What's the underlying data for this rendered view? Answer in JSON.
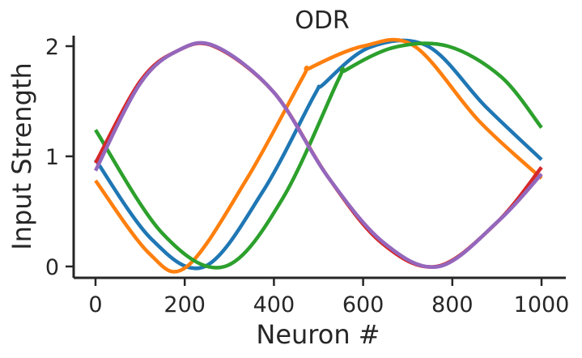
{
  "chart_data": {
    "type": "line",
    "title": "ODR",
    "xlabel": "Neuron #",
    "ylabel": "Input Strength",
    "xlim": [
      -50,
      1050
    ],
    "ylim": [
      -0.1,
      2.1
    ],
    "xticks": [
      0,
      200,
      400,
      600,
      800,
      1000
    ],
    "yticks": [
      0,
      1,
      2
    ],
    "grid": false,
    "legend": "none",
    "series": [
      {
        "color": "#1f77b4",
        "points": [
          [
            0,
            0.97
          ],
          [
            125,
            0.25
          ],
          [
            245,
            0.0
          ],
          [
            375,
            0.68
          ],
          [
            490,
            1.55
          ],
          [
            510,
            1.65
          ],
          [
            615,
            1.99
          ],
          [
            745,
            2.0
          ],
          [
            875,
            1.45
          ],
          [
            1000,
            0.97
          ]
        ]
      },
      {
        "color": "#ff7f0e",
        "points": [
          [
            0,
            0.78
          ],
          [
            120,
            0.12
          ],
          [
            205,
            0.0
          ],
          [
            340,
            0.8
          ],
          [
            465,
            1.72
          ],
          [
            480,
            1.8
          ],
          [
            600,
            2.0
          ],
          [
            715,
            2.0
          ],
          [
            860,
            1.32
          ],
          [
            1000,
            0.8
          ]
        ]
      },
      {
        "color": "#2ca02c",
        "points": [
          [
            0,
            1.24
          ],
          [
            150,
            0.3
          ],
          [
            290,
            0.0
          ],
          [
            420,
            0.62
          ],
          [
            545,
            1.7
          ],
          [
            560,
            1.78
          ],
          [
            670,
            1.99
          ],
          [
            790,
            2.0
          ],
          [
            910,
            1.72
          ],
          [
            1000,
            1.26
          ]
        ]
      },
      {
        "color": "#d62728",
        "points": [
          [
            0,
            0.94
          ],
          [
            100,
            1.68
          ],
          [
            180,
            1.95
          ],
          [
            265,
            2.0
          ],
          [
            400,
            1.58
          ],
          [
            520,
            0.82
          ],
          [
            640,
            0.22
          ],
          [
            765,
            0.0
          ],
          [
            900,
            0.4
          ],
          [
            1000,
            0.9
          ]
        ]
      },
      {
        "color": "#9467bd",
        "points": [
          [
            0,
            0.87
          ],
          [
            100,
            1.66
          ],
          [
            185,
            1.96
          ],
          [
            268,
            2.0
          ],
          [
            400,
            1.58
          ],
          [
            520,
            0.82
          ],
          [
            645,
            0.22
          ],
          [
            770,
            0.0
          ],
          [
            905,
            0.42
          ],
          [
            1000,
            0.84
          ]
        ]
      }
    ]
  }
}
